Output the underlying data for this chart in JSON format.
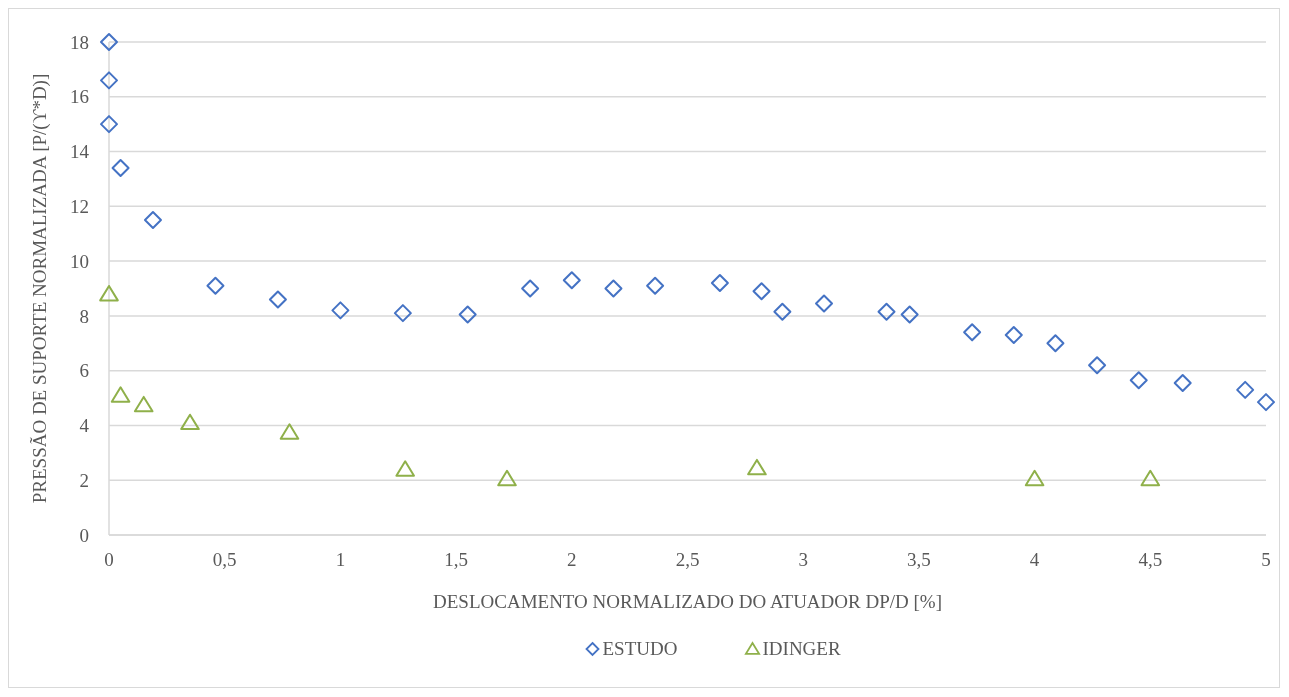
{
  "chart_data": {
    "type": "scatter",
    "xlabel": "DESLOCAMENTO NORMALIZADO DO ATUADOR DP/D [%]",
    "ylabel": "PRESSÃO DE SUPORTE NORMALIZADA [P/(ϒ*D)]",
    "xlim": [
      0,
      5
    ],
    "xticks": [
      0,
      {
        "value": 0.5,
        "label": "0,5"
      },
      1,
      {
        "value": 1.5,
        "label": "1,5"
      },
      2,
      {
        "value": 2.5,
        "label": "2,5"
      },
      3,
      {
        "value": 3.5,
        "label": "3,5"
      },
      4,
      {
        "value": 4.5,
        "label": "4,5"
      },
      5
    ],
    "ylim": [
      0,
      18
    ],
    "yticks": [
      0,
      2,
      4,
      6,
      8,
      10,
      12,
      14,
      16,
      18
    ],
    "grid": "y",
    "legend": "bottom",
    "series": [
      {
        "name": "ESTUDO",
        "color": "#4472c4",
        "marker": "diamond",
        "x": [
          0,
          0,
          0,
          0.05,
          0.19,
          0.46,
          0.73,
          1.0,
          1.27,
          1.55,
          1.82,
          2.0,
          2.18,
          2.36,
          2.64,
          2.82,
          2.91,
          3.09,
          3.36,
          3.46,
          3.73,
          3.91,
          4.09,
          4.27,
          4.45,
          4.64,
          4.91,
          5.0
        ],
        "values": [
          18.0,
          16.6,
          15.0,
          13.4,
          11.5,
          9.1,
          8.6,
          8.2,
          8.1,
          8.05,
          9.0,
          9.3,
          9.0,
          9.1,
          9.2,
          8.9,
          8.15,
          8.45,
          8.15,
          8.05,
          7.4,
          7.3,
          7.0,
          6.2,
          5.65,
          5.55,
          5.3,
          4.85
        ]
      },
      {
        "name": "IDINGER",
        "color": "#8fb04a",
        "marker": "triangle",
        "x": [
          0,
          0.05,
          0.15,
          0.35,
          0.78,
          1.28,
          1.72,
          2.8,
          4.0,
          4.5
        ],
        "values": [
          8.8,
          5.1,
          4.75,
          4.1,
          3.75,
          2.4,
          2.05,
          2.45,
          2.05,
          2.05
        ]
      }
    ]
  }
}
